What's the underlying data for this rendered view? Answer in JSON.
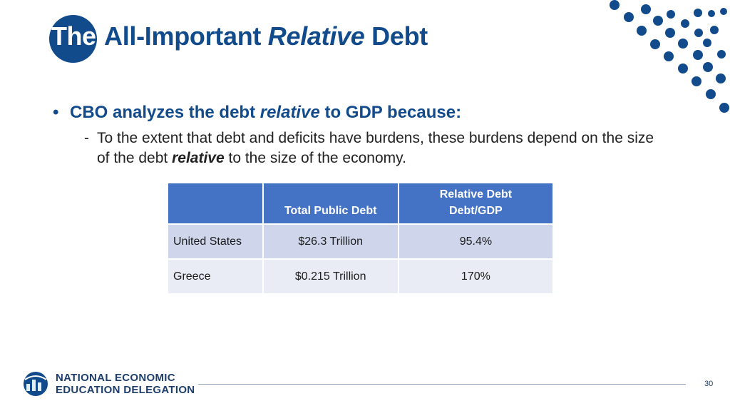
{
  "slide": {
    "title_prefix": "The",
    "title_part1": "All-Important ",
    "title_emphasis": "Relative",
    "title_part2": " Debt"
  },
  "bullets": {
    "main_part1": "CBO analyzes the debt ",
    "main_emphasis": "relative",
    "main_part2": " to GDP because:",
    "sub_dash": "-",
    "sub_part1": "To the extent that debt and deficits have burdens, these burdens depend on the size of the debt ",
    "sub_emphasis": "relative",
    "sub_part2": " to the size of the economy."
  },
  "table": {
    "headers": {
      "col1": "",
      "col2": "Total Public Debt",
      "col3_line1": "Relative Debt",
      "col3_line2": "Debt/GDP"
    },
    "rows": [
      {
        "country": "United States",
        "total_debt": "$26.3 Trillion",
        "relative": "95.4%"
      },
      {
        "country": "Greece",
        "total_debt": "$0.215 Trillion",
        "relative": "170%"
      }
    ]
  },
  "footer": {
    "org_line1": "NATIONAL ECONOMIC",
    "org_line2": "EDUCATION DELEGATION",
    "page_number": "30"
  },
  "colors": {
    "brand_blue": "#124b8c",
    "header_blue": "#4472c4",
    "row_band_1": "#cfd5ea",
    "row_band_2": "#e9ebf5"
  },
  "icons": {
    "logo": "globe-logo-icon",
    "decoration": "dot-pattern-decoration"
  }
}
